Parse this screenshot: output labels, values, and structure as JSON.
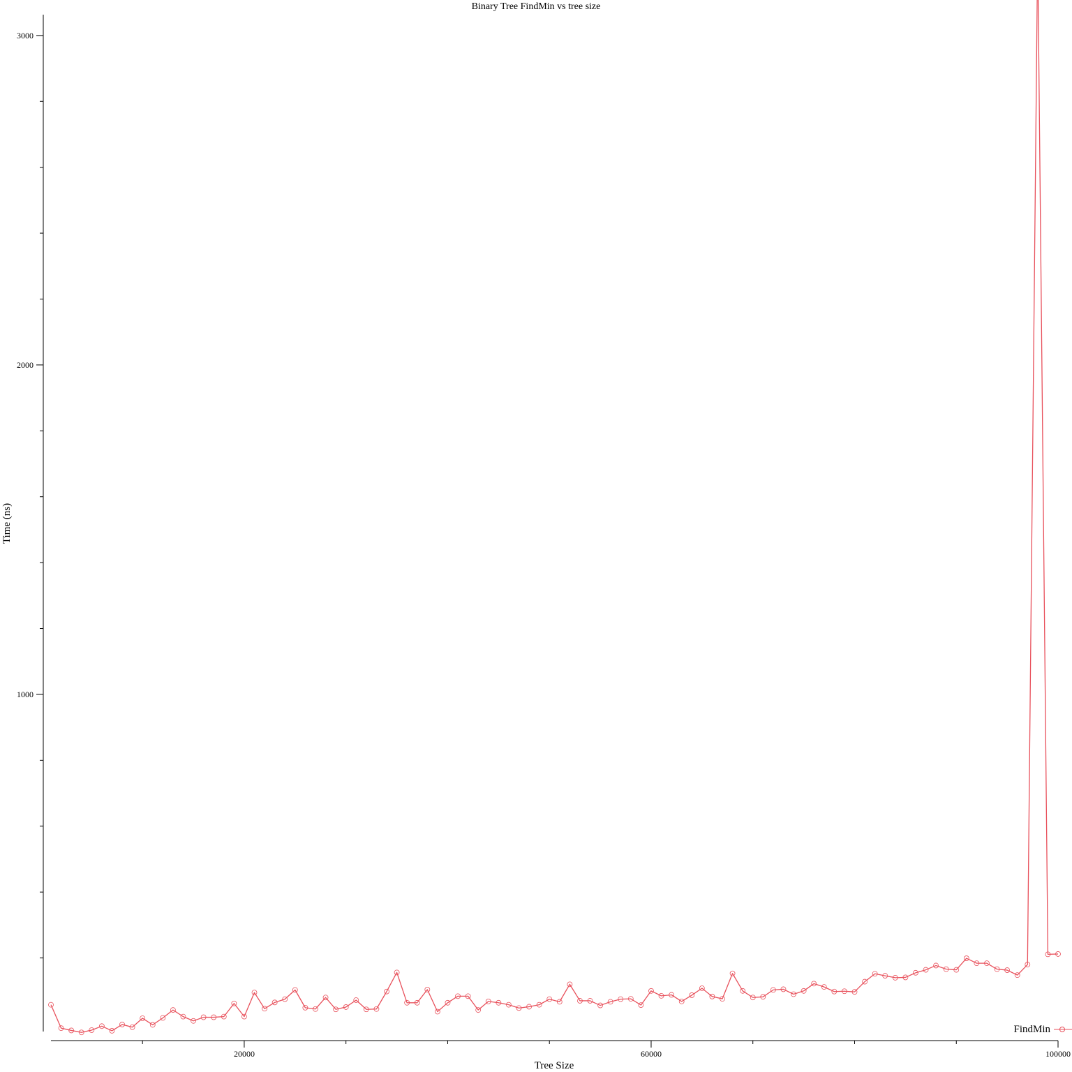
{
  "chart_data": {
    "type": "line",
    "title": "Binary Tree FindMin vs tree size",
    "xlabel": "Tree Size",
    "ylabel": "Time (ns)",
    "xlim": [
      1000,
      100000
    ],
    "ylim": [
      0,
      3265
    ],
    "x_ticks": [
      {
        "value": 10000,
        "label": ""
      },
      {
        "value": 20000,
        "label": "20000"
      },
      {
        "value": 30000,
        "label": ""
      },
      {
        "value": 40000,
        "label": ""
      },
      {
        "value": 50000,
        "label": ""
      },
      {
        "value": 60000,
        "label": "60000"
      },
      {
        "value": 70000,
        "label": ""
      },
      {
        "value": 80000,
        "label": ""
      },
      {
        "value": 90000,
        "label": ""
      },
      {
        "value": 100000,
        "label": "100000"
      }
    ],
    "y_ticks": [
      {
        "value": 200,
        "label": ""
      },
      {
        "value": 400,
        "label": ""
      },
      {
        "value": 600,
        "label": ""
      },
      {
        "value": 800,
        "label": ""
      },
      {
        "value": 1000,
        "label": "1000"
      },
      {
        "value": 1200,
        "label": ""
      },
      {
        "value": 1400,
        "label": ""
      },
      {
        "value": 1600,
        "label": ""
      },
      {
        "value": 1800,
        "label": ""
      },
      {
        "value": 2000,
        "label": "2000"
      },
      {
        "value": 2200,
        "label": ""
      },
      {
        "value": 2400,
        "label": ""
      },
      {
        "value": 2600,
        "label": ""
      },
      {
        "value": 2800,
        "label": ""
      },
      {
        "value": 3000,
        "label": "3000"
      },
      {
        "value": 3200,
        "label": ""
      }
    ],
    "grid": false,
    "legend": "bottom-right",
    "series": [
      {
        "name": "FindMin",
        "color": "#e8505b",
        "marker": "circle",
        "x": [
          1000,
          2000,
          3000,
          4000,
          5000,
          6000,
          7000,
          8000,
          9000,
          10000,
          11000,
          12000,
          13000,
          14000,
          15000,
          16000,
          17000,
          18000,
          19000,
          20000,
          21000,
          22000,
          23000,
          24000,
          25000,
          26000,
          27000,
          28000,
          29000,
          30000,
          31000,
          32000,
          33000,
          34000,
          35000,
          36000,
          37000,
          38000,
          39000,
          40000,
          41000,
          42000,
          43000,
          44000,
          45000,
          46000,
          47000,
          48000,
          49000,
          50000,
          51000,
          52000,
          53000,
          54000,
          55000,
          56000,
          57000,
          58000,
          59000,
          60000,
          61000,
          62000,
          63000,
          64000,
          65000,
          66000,
          67000,
          68000,
          69000,
          70000,
          71000,
          72000,
          73000,
          74000,
          75000,
          76000,
          77000,
          78000,
          79000,
          80000,
          81000,
          82000,
          83000,
          84000,
          85000,
          86000,
          87000,
          88000,
          89000,
          90000,
          91000,
          92000,
          93000,
          94000,
          95000,
          96000,
          97000,
          98000,
          99000,
          100000
        ],
        "y": [
          58,
          -13,
          -20,
          -26,
          -19,
          -7,
          -21,
          -2,
          -10,
          17,
          -3,
          18,
          42,
          22,
          9,
          20,
          20,
          22,
          62,
          22,
          95,
          46,
          65,
          75,
          103,
          49,
          45,
          80,
          44,
          51,
          72,
          44,
          45,
          98,
          156,
          64,
          64,
          104,
          37,
          64,
          84,
          84,
          42,
          68,
          64,
          58,
          48,
          52,
          58,
          75,
          67,
          120,
          70,
          70,
          56,
          67,
          75,
          76,
          57,
          100,
          85,
          88,
          68,
          87,
          108,
          83,
          76,
          153,
          100,
          80,
          82,
          103,
          105,
          90,
          100,
          122,
          112,
          98,
          99,
          97,
          128,
          152,
          146,
          140,
          141,
          155,
          164,
          177,
          166,
          164,
          199,
          184,
          184,
          166,
          163,
          148,
          180,
          3265,
          211,
          212
        ]
      }
    ]
  }
}
